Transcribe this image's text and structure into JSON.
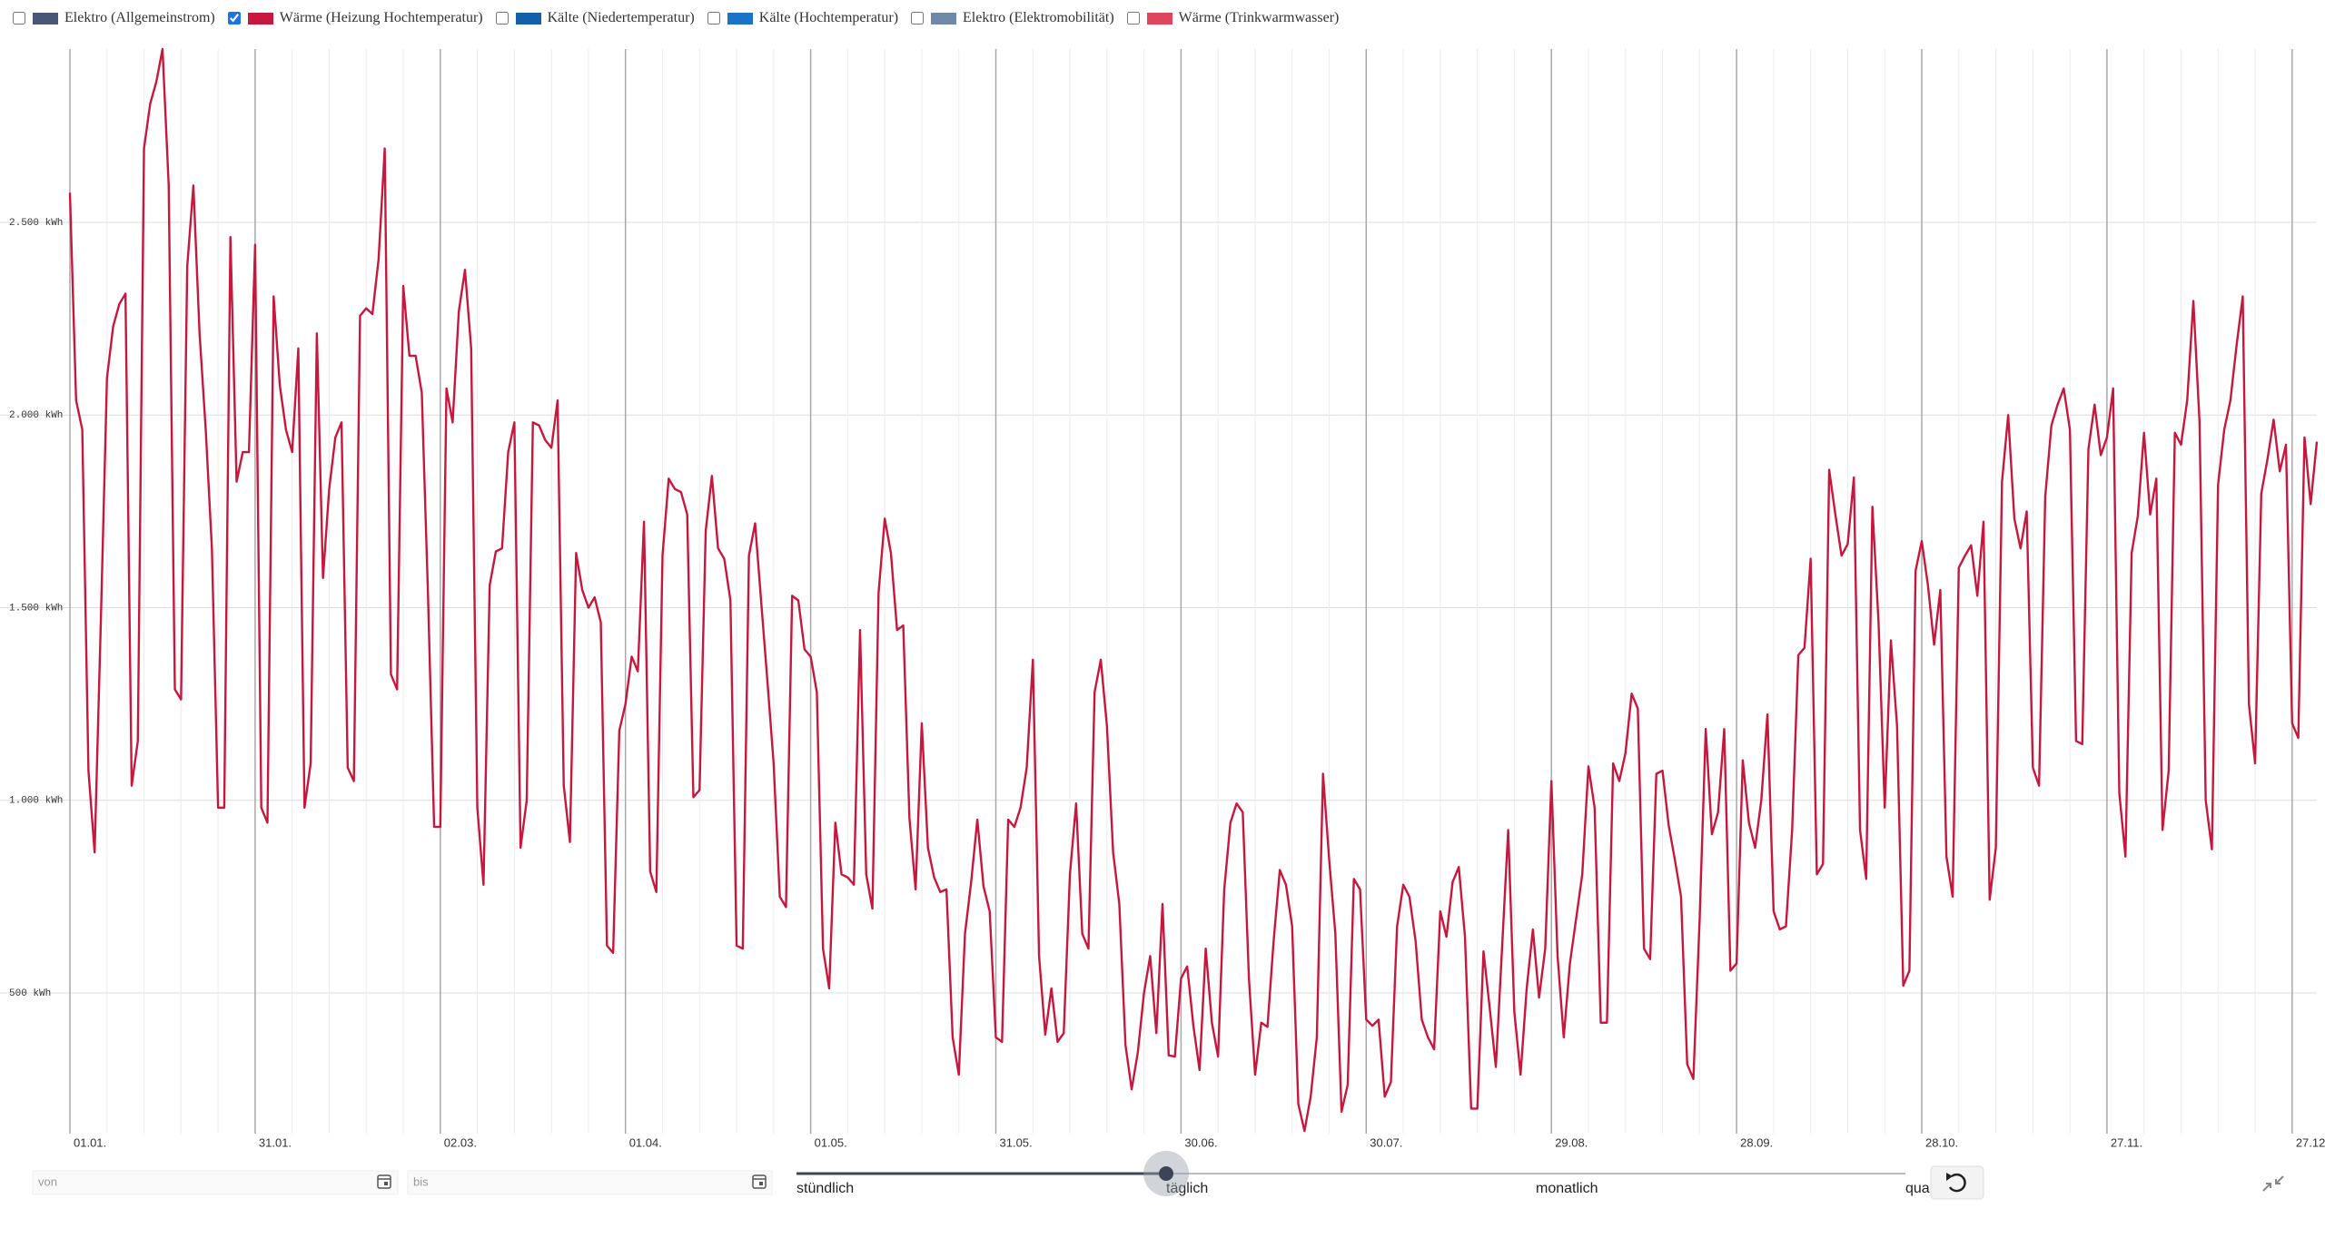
{
  "chart_data": {
    "type": "line",
    "series": [
      {
        "name": "Elektro (Allgemeinstrom)",
        "color": "#4a5677",
        "visible": false
      },
      {
        "name": "Wärme (Heizung Hochtemperatur)",
        "color": "#c8173d",
        "visible": true,
        "values": [
          2577,
          2038,
          1962,
          1077,
          865,
          1460,
          2096,
          2230,
          2288,
          2315,
          1038,
          1154,
          2692,
          2808,
          2865,
          2950,
          2596,
          1288,
          1262,
          2385,
          2596,
          2212,
          1962,
          1654,
          981,
          981,
          2462,
          1827,
          1904,
          1904,
          2442,
          981,
          942,
          2308,
          2077,
          1962,
          1904,
          2173,
          981,
          1096,
          2212,
          1577,
          1808,
          1942,
          1981,
          1085,
          1050,
          2258,
          2277,
          2262,
          2404,
          2692,
          1327,
          1288,
          2335,
          2154,
          2154,
          2058,
          1538,
          931,
          931,
          2069,
          1981,
          2269,
          2377,
          2173,
          981,
          781,
          1558,
          1646,
          1654,
          1904,
          1981,
          877,
          1000,
          1981,
          1973,
          1935,
          1915,
          2038,
          1038,
          892,
          1642,
          1546,
          1500,
          1527,
          1462,
          623,
          604,
          1181,
          1250,
          1373,
          1335,
          1723,
          815,
          762,
          1635,
          1835,
          1808,
          1800,
          1742,
          1008,
          1027,
          1700,
          1842,
          1654,
          1627,
          1519,
          623,
          615,
          1635,
          1719,
          1512,
          1308,
          1096,
          750,
          723,
          1531,
          1519,
          1392,
          1373,
          1281,
          615,
          512,
          942,
          808,
          800,
          781,
          1442,
          808,
          719,
          1538,
          1731,
          1642,
          1442,
          1454,
          954,
          769,
          1200,
          877,
          800,
          762,
          769,
          385,
          288,
          654,
          788,
          950,
          777,
          712,
          385,
          373,
          950,
          931,
          981,
          1085,
          1365,
          596,
          392,
          512,
          373,
          396,
          808,
          992,
          654,
          615,
          1281,
          1365,
          1192,
          865,
          731,
          365,
          250,
          346,
          500,
          596,
          396,
          731,
          338,
          335,
          538,
          569,
          415,
          300,
          615,
          423,
          335,
          769,
          942,
          992,
          969,
          538,
          288,
          423,
          412,
          635,
          819,
          781,
          673,
          212,
          142,
          231,
          385,
          1069,
          846,
          654,
          192,
          262,
          796,
          769,
          431,
          415,
          431,
          231,
          269,
          673,
          781,
          750,
          635,
          431,
          385,
          354,
          712,
          646,
          788,
          827,
          646,
          200,
          200,
          608,
          462,
          308,
          615,
          923,
          450,
          288,
          512,
          665,
          488,
          615,
          1050,
          596,
          385,
          577,
          692,
          808,
          1088,
          981,
          423,
          423,
          1096,
          1050,
          1123,
          1277,
          1238,
          615,
          588,
          1069,
          1077,
          935,
          846,
          750,
          315,
          277,
          685,
          1185,
          912,
          969,
          1185,
          558,
          577,
          1104,
          942,
          877,
          1000,
          1223,
          712,
          665,
          673,
          923,
          1377,
          1396,
          1627,
          808,
          835,
          1858,
          1742,
          1635,
          1665,
          1838,
          923,
          796,
          1762,
          1462,
          981,
          1415,
          1192,
          519,
          558,
          1596,
          1673,
          1558,
          1404,
          1546,
          854,
          750,
          1604,
          1635,
          1662,
          1531,
          1723,
          742,
          877,
          1827,
          2000,
          1731,
          1654,
          1750,
          1085,
          1038,
          1788,
          1973,
          2027,
          2069,
          1962,
          1154,
          1146,
          1912,
          2027,
          1896,
          1942,
          2069,
          1019,
          854,
          1642,
          1738,
          1954,
          1742,
          1835,
          923,
          1077,
          1954,
          1923,
          2038,
          2296,
          1981,
          1000,
          873,
          1819,
          1962,
          2038,
          2181,
          2308,
          1250,
          1096,
          1796,
          1885,
          1988,
          1854,
          1923,
          1200,
          1162,
          1942,
          1769,
          1931
        ]
      },
      {
        "name": "Kälte (Niedertemperatur)",
        "color": "#1460a8",
        "visible": false
      },
      {
        "name": "Kälte (Hochtemperatur)",
        "color": "#1a73c8",
        "visible": false
      },
      {
        "name": "Elektro (Elektromobilität)",
        "color": "#7088a8",
        "visible": false
      },
      {
        "name": "Wärme (Trinkwarmwasser)",
        "color": "#e0455e",
        "visible": false
      }
    ],
    "x": [
      0,
      1,
      2,
      3,
      4,
      5,
      6,
      7,
      8,
      9,
      10,
      11,
      12,
      13,
      14,
      15,
      16,
      17,
      18,
      19,
      20,
      21,
      22,
      23,
      24,
      25,
      26,
      27,
      28,
      29,
      30,
      31,
      32,
      33,
      34,
      35,
      36,
      37,
      38,
      39,
      40,
      41,
      42,
      43,
      44,
      45,
      46,
      47,
      48,
      49,
      50,
      51,
      52,
      53,
      54,
      55,
      56,
      57,
      58,
      59,
      60,
      61,
      62,
      63,
      64,
      65,
      66,
      67,
      68,
      69,
      70,
      71,
      72,
      73,
      74,
      75,
      76,
      77,
      78,
      79,
      80,
      81,
      82,
      83,
      84,
      85,
      86,
      87,
      88,
      89,
      90,
      91,
      92,
      93,
      94,
      95,
      96,
      97,
      98,
      99,
      100,
      101,
      102,
      103,
      104,
      105,
      106,
      107,
      108,
      109,
      110,
      111,
      112,
      113,
      114,
      115,
      116,
      117,
      118,
      119,
      120,
      121,
      122,
      123,
      124,
      125,
      126,
      127,
      128,
      129,
      130,
      131,
      132,
      133,
      134,
      135,
      136,
      137,
      138,
      139,
      140,
      141,
      142,
      143,
      144,
      145,
      146,
      147,
      148,
      149,
      150,
      151,
      152,
      153,
      154,
      155,
      156,
      157,
      158,
      159,
      160,
      161,
      162,
      163,
      164,
      165,
      166,
      167,
      168,
      169,
      170,
      171,
      172,
      173,
      174,
      175,
      176,
      177,
      178,
      179,
      180,
      181,
      182,
      183,
      184,
      185,
      186,
      187,
      188,
      189,
      190,
      191,
      192,
      193,
      194,
      195,
      196,
      197,
      198,
      199,
      200,
      201,
      202,
      203,
      204,
      205,
      206,
      207,
      208,
      209,
      210,
      211,
      212,
      213,
      214,
      215,
      216,
      217,
      218,
      219,
      220,
      221,
      222,
      223,
      224,
      225,
      226,
      227,
      228,
      229,
      230,
      231,
      232,
      233,
      234,
      235,
      236,
      237,
      238,
      239,
      240,
      241,
      242,
      243,
      244,
      245,
      246,
      247,
      248,
      249,
      250,
      251,
      252,
      253,
      254,
      255,
      256,
      257,
      258,
      259,
      260,
      261,
      262,
      263,
      264,
      265,
      266,
      267,
      268,
      269,
      270,
      271,
      272,
      273,
      274,
      275,
      276,
      277,
      278,
      279,
      280,
      281,
      282,
      283,
      284,
      285,
      286,
      287,
      288,
      289,
      290,
      291,
      292,
      293,
      294,
      295,
      296,
      297,
      298,
      299,
      300,
      301,
      302,
      303,
      304,
      305,
      306,
      307,
      308,
      309,
      310,
      311,
      312,
      313,
      314,
      315,
      316,
      317,
      318,
      319,
      320,
      321,
      322,
      323,
      324,
      325,
      326,
      327,
      328,
      329,
      330,
      331,
      332,
      333,
      334,
      335,
      336,
      337,
      338,
      339,
      340,
      341,
      342,
      343,
      344,
      345,
      346,
      347,
      348,
      349,
      350,
      351,
      352,
      353,
      354,
      355,
      356,
      357,
      358,
      359,
      360,
      361,
      362,
      363,
      364
    ],
    "xlim": [
      0,
      364
    ],
    "xticks": [
      {
        "value": 0,
        "label": "01.01."
      },
      {
        "value": 30,
        "label": "31.01."
      },
      {
        "value": 60,
        "label": "02.03."
      },
      {
        "value": 90,
        "label": "01.04."
      },
      {
        "value": 120,
        "label": "01.05."
      },
      {
        "value": 150,
        "label": "31.05."
      },
      {
        "value": 180,
        "label": "30.06."
      },
      {
        "value": 210,
        "label": "30.07."
      },
      {
        "value": 240,
        "label": "29.08."
      },
      {
        "value": 270,
        "label": "28.09."
      },
      {
        "value": 300,
        "label": "28.10."
      },
      {
        "value": 330,
        "label": "27.11."
      },
      {
        "value": 360,
        "label": "27.12."
      }
    ],
    "xminorticks": [
      6,
      12,
      18,
      24,
      36,
      42,
      48,
      54,
      66,
      72,
      78,
      84,
      96,
      102,
      108,
      114,
      126,
      132,
      138,
      144,
      156,
      162,
      168,
      174,
      186,
      192,
      198,
      204,
      216,
      222,
      228,
      234,
      246,
      252,
      258,
      264,
      276,
      282,
      288,
      294,
      306,
      312,
      318,
      324,
      336,
      342,
      348,
      354
    ],
    "ylim": [
      135,
      2950
    ],
    "yticks": [
      {
        "value": 500,
        "label": "500 kWh"
      },
      {
        "value": 1000,
        "label": "1.000 kWh"
      },
      {
        "value": 1500,
        "label": "1.500 kWh"
      },
      {
        "value": 2000,
        "label": "2.000 kWh"
      },
      {
        "value": 2500,
        "label": "2.500 kWh"
      }
    ],
    "grid": true
  },
  "controls": {
    "from_placeholder": "von",
    "to_placeholder": "bis",
    "resolution_options": [
      "stündlich",
      "täglich",
      "monatlich",
      "quar"
    ],
    "selected_resolution": 1
  }
}
